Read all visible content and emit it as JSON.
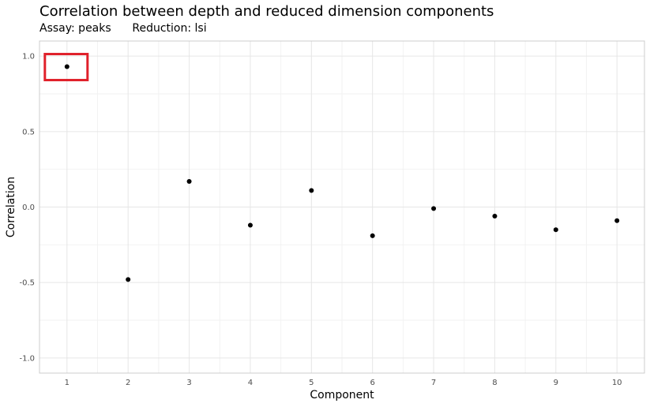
{
  "chart_data": {
    "type": "scatter",
    "title": "Correlation between depth and reduced dimension components",
    "subtitle": "Assay: peaks      Reduction: lsi",
    "xlabel": "Component",
    "ylabel": "Correlation",
    "x": [
      1,
      2,
      3,
      4,
      5,
      6,
      7,
      8,
      9,
      10
    ],
    "y": [
      0.93,
      -0.48,
      0.17,
      -0.12,
      0.11,
      -0.19,
      -0.01,
      -0.06,
      -0.15,
      -0.09
    ],
    "xticks": [
      "1",
      "2",
      "3",
      "4",
      "5",
      "6",
      "7",
      "8",
      "9",
      "10"
    ],
    "yticks": [
      "-1.0",
      "-0.5",
      "0.0",
      "0.5",
      "1.0"
    ],
    "ytick_values": [
      -1.0,
      -0.5,
      0.0,
      0.5,
      1.0
    ],
    "ylim": [
      -1.1,
      1.1
    ],
    "xlim": [
      0.55,
      10.45
    ],
    "grid": true,
    "highlight": {
      "component": 1,
      "color": "#e0202a"
    },
    "colors": {
      "point": "#000000",
      "panel_border": "#cccccc",
      "grid_major": "#e6e6e6",
      "grid_minor": "#f2f2f2"
    }
  }
}
